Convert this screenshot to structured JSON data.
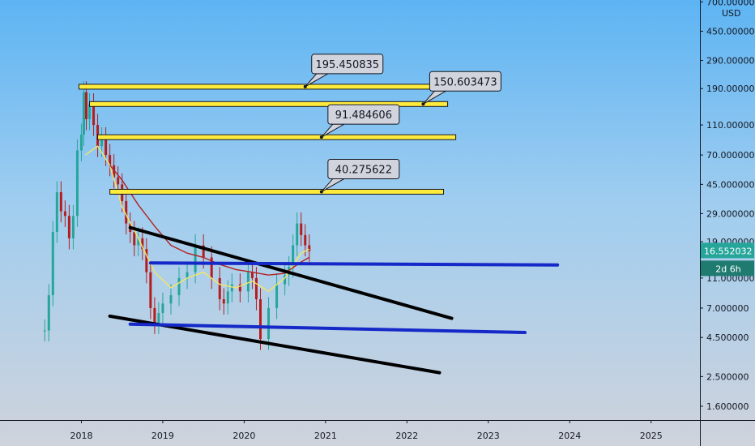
{
  "chart_data": {
    "type": "line",
    "currency": "USD",
    "yaxis": {
      "scale": "log",
      "ticks": [
        "700.000000",
        "450.000000",
        "290.000000",
        "190.000000",
        "110.000000",
        "70.000000",
        "45.000000",
        "29.000000",
        "19.000000",
        "11.000000",
        "7.000000",
        "4.500000",
        "2.500000",
        "1.600000"
      ],
      "range": [
        1.3,
        720
      ]
    },
    "xaxis": {
      "ticks": [
        "2018",
        "2019",
        "2020",
        "2021",
        "2022",
        "2023",
        "2024",
        "2025"
      ],
      "range": [
        2017.0,
        2025.6
      ]
    },
    "price": {
      "current": 16.552032,
      "current_label": "16.552032",
      "countdown": "2d 6h",
      "series": [
        [
          2017.55,
          5.0
        ],
        [
          2017.6,
          8.5
        ],
        [
          2017.65,
          22
        ],
        [
          2017.7,
          40
        ],
        [
          2017.75,
          30
        ],
        [
          2017.8,
          28
        ],
        [
          2017.85,
          20
        ],
        [
          2017.9,
          28
        ],
        [
          2017.95,
          75
        ],
        [
          2018.0,
          95
        ],
        [
          2018.03,
          180
        ],
        [
          2018.06,
          120
        ],
        [
          2018.1,
          150
        ],
        [
          2018.15,
          110
        ],
        [
          2018.2,
          80
        ],
        [
          2018.25,
          90
        ],
        [
          2018.3,
          70
        ],
        [
          2018.35,
          60
        ],
        [
          2018.4,
          50
        ],
        [
          2018.45,
          45
        ],
        [
          2018.5,
          35
        ],
        [
          2018.55,
          25
        ],
        [
          2018.6,
          22
        ],
        [
          2018.65,
          18
        ],
        [
          2018.7,
          20
        ],
        [
          2018.75,
          17
        ],
        [
          2018.8,
          12
        ],
        [
          2018.85,
          7
        ],
        [
          2018.9,
          5.6
        ],
        [
          2018.95,
          6.5
        ],
        [
          2019.0,
          7.5
        ],
        [
          2019.1,
          8.5
        ],
        [
          2019.2,
          11
        ],
        [
          2019.3,
          12
        ],
        [
          2019.4,
          18
        ],
        [
          2019.5,
          15
        ],
        [
          2019.6,
          11
        ],
        [
          2019.7,
          8
        ],
        [
          2019.75,
          7.5
        ],
        [
          2019.8,
          9
        ],
        [
          2019.85,
          10
        ],
        [
          2019.95,
          9
        ],
        [
          2020.05,
          12
        ],
        [
          2020.1,
          11
        ],
        [
          2020.15,
          8
        ],
        [
          2020.2,
          4.4
        ],
        [
          2020.3,
          7
        ],
        [
          2020.4,
          10
        ],
        [
          2020.5,
          11.5
        ],
        [
          2020.55,
          13
        ],
        [
          2020.6,
          18
        ],
        [
          2020.65,
          25
        ],
        [
          2020.7,
          21
        ],
        [
          2020.75,
          18
        ],
        [
          2020.8,
          16.5
        ]
      ]
    },
    "moving_averages": [
      {
        "color": "#f5e663",
        "values": [
          [
            2018.05,
            70
          ],
          [
            2018.2,
            80
          ],
          [
            2018.35,
            60
          ],
          [
            2018.5,
            32
          ],
          [
            2018.7,
            20
          ],
          [
            2018.9,
            12
          ],
          [
            2019.1,
            9.5
          ],
          [
            2019.3,
            11
          ],
          [
            2019.5,
            12
          ],
          [
            2019.7,
            10
          ],
          [
            2019.9,
            9.5
          ],
          [
            2020.1,
            10.5
          ],
          [
            2020.3,
            9
          ],
          [
            2020.5,
            11
          ],
          [
            2020.7,
            16
          ],
          [
            2020.8,
            17
          ]
        ]
      },
      {
        "color": "#b22222",
        "values": [
          [
            2018.35,
            60
          ],
          [
            2018.5,
            48
          ],
          [
            2018.7,
            33
          ],
          [
            2018.9,
            24
          ],
          [
            2019.1,
            18
          ],
          [
            2019.3,
            16
          ],
          [
            2019.5,
            15
          ],
          [
            2019.7,
            13.5
          ],
          [
            2019.9,
            12.5
          ],
          [
            2020.1,
            12
          ],
          [
            2020.3,
            11.5
          ],
          [
            2020.5,
            11.8
          ],
          [
            2020.7,
            14
          ],
          [
            2020.8,
            15
          ]
        ]
      }
    ],
    "horizontal_levels": [
      {
        "label": "195.450835",
        "value": 195.450835,
        "x_start": 2017.97,
        "x_end": 2022.5,
        "label_x": 2020.75,
        "color": "#ffeb3b"
      },
      {
        "label": "150.603473",
        "value": 150.603473,
        "x_start": 2018.1,
        "x_end": 2022.5,
        "label_x": 2022.2,
        "color": "#ffeb3b"
      },
      {
        "label": "91.484606",
        "value": 91.484606,
        "x_start": 2018.2,
        "x_end": 2022.6,
        "label_x": 2020.95,
        "color": "#ffeb3b"
      },
      {
        "label": "40.275622",
        "value": 40.275622,
        "x_start": 2018.35,
        "x_end": 2022.45,
        "label_x": 2020.95,
        "color": "#ffeb3b"
      }
    ],
    "trendlines": [
      {
        "color": "#000000",
        "points": [
          [
            2018.6,
            23.5
          ],
          [
            2022.55,
            6.0
          ]
        ]
      },
      {
        "color": "#000000",
        "points": [
          [
            2018.35,
            6.2
          ],
          [
            2022.4,
            2.65
          ]
        ]
      },
      {
        "color": "#1528c8",
        "points": [
          [
            2018.85,
            13.8
          ],
          [
            2023.85,
            13.4
          ]
        ]
      },
      {
        "color": "#1528c8",
        "points": [
          [
            2018.6,
            5.5
          ],
          [
            2023.45,
            4.85
          ]
        ]
      }
    ]
  }
}
